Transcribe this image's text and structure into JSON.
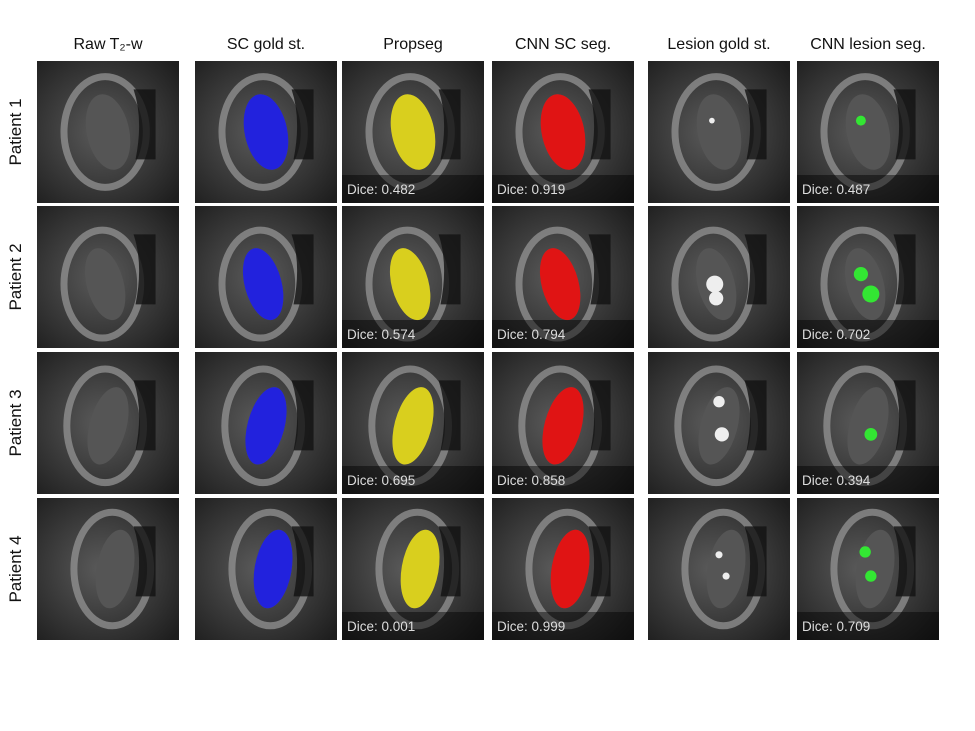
{
  "columns": [
    "Raw T₂-w",
    "SC gold st.",
    "Propseg",
    "CNN SC seg.",
    "Lesion gold st.",
    "CNN lesion seg."
  ],
  "rows": [
    {
      "label": "Patient 1",
      "dice": [
        "Dice: 0.482",
        "Dice: 0.919",
        "Dice: 0.487"
      ]
    },
    {
      "label": "Patient 2",
      "dice": [
        "Dice: 0.574",
        "Dice: 0.794",
        "Dice: 0.702"
      ]
    },
    {
      "label": "Patient 3",
      "dice": [
        "Dice: 0.695",
        "Dice: 0.858",
        "Dice: 0.394"
      ]
    },
    {
      "label": "Patient 4",
      "dice": [
        "Dice: 0.001",
        "Dice: 0.999",
        "Dice: 0.709"
      ]
    }
  ]
}
